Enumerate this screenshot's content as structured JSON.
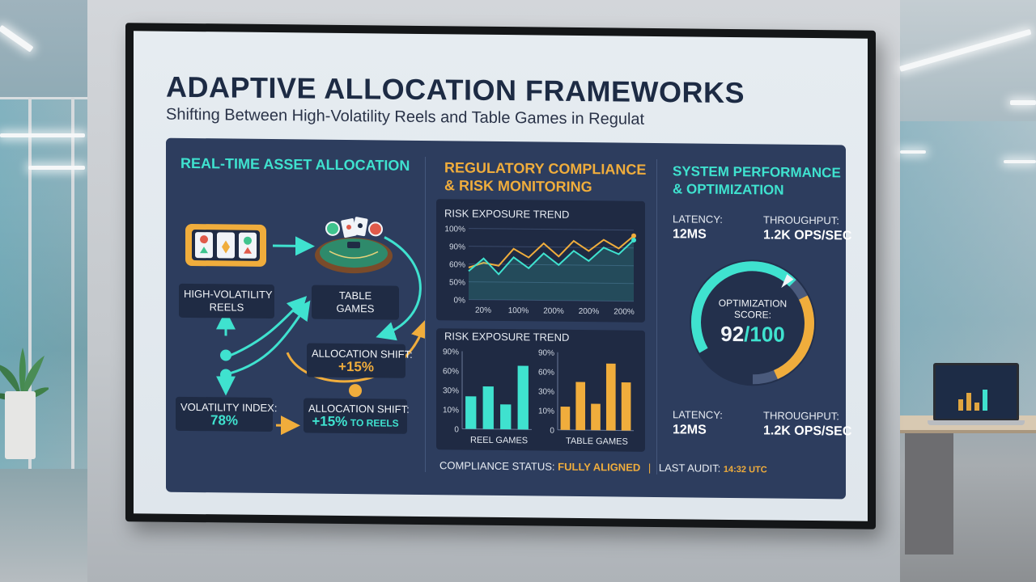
{
  "title": "ADAPTIVE ALLOCATION FRAMEWORKS",
  "subtitle": "Shifting Between High-Volatility Reels and Table Games in Regulat",
  "allocation_panel": {
    "title": "REAL-TIME ASSET ALLOCATION",
    "reels_label_line1": "HIGH-VOLATILITY",
    "reels_label_line2": "REELS",
    "table_label_line1": "TABLE",
    "table_label_line2": "GAMES",
    "volatility_label": "VOLATILITY INDEX:",
    "volatility_value": "78%",
    "shift1_label": "ALLOCATION SHIFT:",
    "shift1_value": "+15%",
    "shift2_label": "ALLOCATION SHIFT:",
    "shift2_value": "+15%",
    "shift2_suffix": "TO REELS",
    "icons": [
      "slot-machine-icon",
      "card-table-icon"
    ]
  },
  "compliance_panel": {
    "title_line1": "REGULATORY COMPLIANCE",
    "title_line2": "& RISK MONITORING",
    "trend_chart_title": "RISK EXPOSURE TREND",
    "bar_chart_title": "RISK EXPOSURE TREND",
    "reel_games_label": "REEL GAMES",
    "table_games_label": "TABLE GAMES"
  },
  "performance_panel": {
    "title_line1": "SYSTEM PERFORMANCE",
    "title_line2": "& OPTIMIZATION",
    "latency_label": "LATENCY:",
    "latency_value": "12MS",
    "throughput_label": "THROUGHPUT:",
    "throughput_value": "1.2K OPS/SEC",
    "latency_label_2": "LATENCY:",
    "latency_value_2": "12MS",
    "throughput_label_2": "THROUGHPUT:",
    "throughput_value_2": "1.2K OPS/SEC",
    "score_label_line1": "OPTIMIZATION",
    "score_label_line2": "SCORE:",
    "score_value": "92",
    "score_max": "/100",
    "score_fraction": 0.92
  },
  "footer": {
    "status_label": "COMPLIANCE STATUS:",
    "status_value": "FULLY ALIGNED",
    "separator": "|",
    "audit_label": "LAST AUDIT:",
    "audit_value": "14:32 UTC"
  },
  "colors": {
    "teal": "#3fe2cf",
    "gold": "#f0ad3c",
    "panel": "#2d3d5e",
    "card": "#1f2a43"
  },
  "chart_data": [
    {
      "type": "line",
      "title": "RISK EXPOSURE TREND",
      "y_ticks": [
        "100%",
        "90%",
        "60%",
        "50%",
        "0%"
      ],
      "x_ticks": [
        "20%",
        "100%",
        "200%",
        "200%",
        "200%"
      ],
      "ylim": [
        0,
        100
      ],
      "series": [
        {
          "values": [
            45,
            52,
            48,
            72,
            60,
            80,
            62,
            84,
            70,
            86,
            74,
            92
          ]
        },
        {
          "values": [
            40,
            58,
            36,
            60,
            45,
            66,
            50,
            70,
            56,
            75,
            66,
            86
          ]
        }
      ]
    },
    {
      "type": "bar",
      "title": "RISK EXPOSURE TREND",
      "xlabel": "REEL GAMES",
      "y_ticks": [
        "90%",
        "60%",
        "30%",
        "10%",
        "0"
      ],
      "values": [
        42,
        55,
        32,
        82
      ]
    },
    {
      "type": "bar",
      "xlabel": "TABLE GAMES",
      "y_ticks": [
        "90%",
        "60%",
        "30%",
        "10%",
        "0"
      ],
      "values": [
        30,
        62,
        34,
        86,
        62
      ]
    }
  ]
}
